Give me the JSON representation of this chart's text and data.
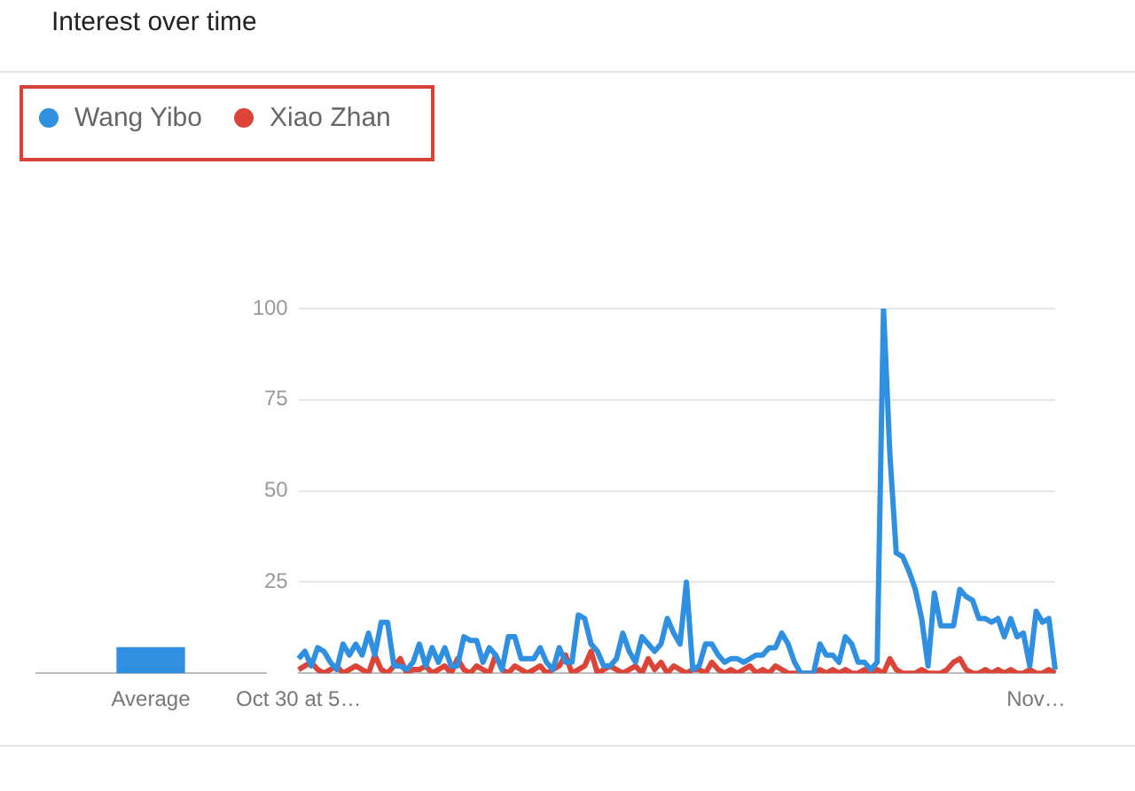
{
  "chart_data": [
    {
      "type": "bar",
      "title": "Interest over time",
      "categories": [
        "Average"
      ],
      "values": [
        7
      ],
      "color": "#2f8fe0",
      "ylim": [
        0,
        100
      ],
      "tick_labels": "x",
      "grid": false
    },
    {
      "type": "line",
      "legend": "top left",
      "grid": "y",
      "marker": "none",
      "line_style": "solid",
      "categories": [
        "Oct 30 at 5…",
        null,
        null,
        null,
        null,
        null,
        null,
        null,
        null,
        null,
        null,
        null,
        null,
        null,
        null,
        null,
        null,
        null,
        null,
        null,
        null,
        null,
        null,
        null,
        null,
        null,
        null,
        null,
        null,
        null,
        null,
        null,
        null,
        null,
        null,
        null,
        null,
        null,
        null,
        null,
        null,
        null,
        null,
        null,
        null,
        null,
        null,
        null,
        null,
        null,
        null,
        null,
        null,
        null,
        null,
        null,
        null,
        null,
        null,
        null,
        null,
        null,
        null,
        null,
        null,
        null,
        null,
        null,
        null,
        null,
        null,
        null,
        null,
        null,
        null,
        null,
        null,
        null,
        null,
        null,
        null,
        null,
        null,
        null,
        null,
        null,
        null,
        null,
        null,
        null,
        null,
        null,
        null,
        null,
        null,
        null,
        null,
        null,
        null,
        null,
        null,
        null,
        null,
        null,
        null,
        null,
        null,
        null,
        null,
        null,
        null,
        null,
        null,
        null,
        null,
        null,
        "Nov…",
        null,
        null,
        null
      ],
      "ylim": [
        0,
        100
      ],
      "yticks": [
        25,
        50,
        75,
        100
      ],
      "series": [
        {
          "name": "Wang Yibo",
          "color": "#2f8fe0",
          "values": [
            4,
            6,
            2,
            7,
            6,
            3,
            1,
            8,
            5,
            8,
            5,
            11,
            5,
            14,
            14,
            2,
            2,
            1,
            3,
            8,
            2,
            7,
            3,
            7,
            2,
            2,
            10,
            9,
            9,
            3,
            7,
            5,
            1,
            10,
            10,
            4,
            4,
            4,
            7,
            3,
            1,
            7,
            3,
            3,
            16,
            15,
            8,
            6,
            2,
            2,
            4,
            11,
            6,
            3,
            10,
            8,
            6,
            8,
            15,
            11,
            8,
            25,
            1,
            2,
            8,
            8,
            5,
            3,
            4,
            4,
            3,
            4,
            5,
            5,
            7,
            7,
            11,
            8,
            3,
            0,
            0,
            0,
            8,
            5,
            5,
            3,
            10,
            8,
            3,
            3,
            1,
            3,
            100,
            60,
            33,
            32,
            28,
            23,
            15,
            2,
            22,
            13,
            13,
            13,
            23,
            21,
            20,
            15,
            15,
            14,
            15,
            10,
            15,
            10,
            11,
            2,
            17,
            14,
            15,
            1
          ]
        },
        {
          "name": "Xiao Zhan",
          "color": "#db4437",
          "values": [
            1,
            2,
            3,
            1,
            0,
            1,
            2,
            0,
            1,
            2,
            1,
            0,
            5,
            1,
            0,
            2,
            4,
            0,
            1,
            1,
            2,
            0,
            1,
            2,
            0,
            4,
            1,
            0,
            2,
            1,
            0,
            5,
            1,
            0,
            2,
            1,
            0,
            1,
            2,
            0,
            1,
            2,
            5,
            0,
            1,
            2,
            6,
            0,
            1,
            2,
            1,
            0,
            1,
            2,
            0,
            4,
            1,
            3,
            0,
            2,
            1,
            0,
            1,
            1,
            0,
            3,
            1,
            0,
            1,
            0,
            1,
            2,
            0,
            1,
            0,
            2,
            1,
            0,
            0,
            0,
            0,
            0,
            1,
            0,
            1,
            0,
            1,
            0,
            0,
            1,
            0,
            1,
            0,
            4,
            1,
            0,
            0,
            0,
            1,
            0,
            0,
            0,
            1,
            3,
            4,
            1,
            0,
            0,
            1,
            0,
            1,
            0,
            1,
            0,
            0,
            1,
            0,
            0,
            1,
            0
          ]
        }
      ]
    }
  ]
}
